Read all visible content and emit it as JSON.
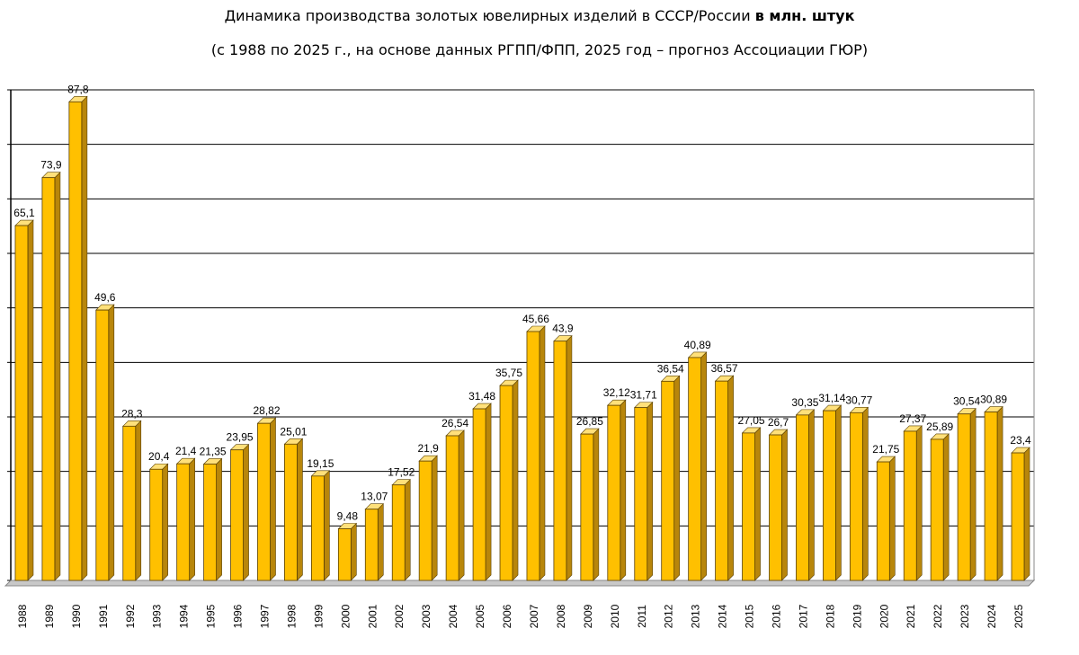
{
  "chart_data": {
    "type": "bar",
    "title": "Динамика производства золотых ювелирных изделий в СССР/России",
    "title_bold": "в млн. штук",
    "subtitle": "(с 1988 по 2025 г., на основе данных РГПП/ФПП, 2025 год – прогноз Ассоциации ГЮР)",
    "xlabel": "",
    "ylabel": "",
    "ylim": [
      0,
      90
    ],
    "grid": true,
    "bar_color": "#FFC000",
    "forecast_label_color": "#FF0000",
    "categories": [
      "1988",
      "1989",
      "1990",
      "1991",
      "1992",
      "1993",
      "1994",
      "1995",
      "1996",
      "1997",
      "1998",
      "1999",
      "2000",
      "2001",
      "2002",
      "2003",
      "2004",
      "2005",
      "2006",
      "2007",
      "2008",
      "2009",
      "2010",
      "2011",
      "2012",
      "2013",
      "2014",
      "2015",
      "2016",
      "2017",
      "2018",
      "2019",
      "2020",
      "2021",
      "2022",
      "2023",
      "2024",
      "2025"
    ],
    "values": [
      65.1,
      73.9,
      87.8,
      49.6,
      28.3,
      20.4,
      21.4,
      21.35,
      23.95,
      28.82,
      25.01,
      19.15,
      9.48,
      13.07,
      17.52,
      21.9,
      26.54,
      31.48,
      35.75,
      45.66,
      43.9,
      26.85,
      32.12,
      31.71,
      36.54,
      40.89,
      36.57,
      27.05,
      26.7,
      30.35,
      31.14,
      30.77,
      21.75,
      27.37,
      25.89,
      30.54,
      30.89,
      23.4
    ],
    "labels": [
      "65,1",
      "73,9",
      "87,8",
      "49,6",
      "28,3",
      "20,4",
      "21,4",
      "21,35",
      "23,95",
      "28,82",
      "25,01",
      "19,15",
      "9,48",
      "13,07",
      "17,52",
      "21,9",
      "26,54",
      "31,48",
      "35,75",
      "45,66",
      "43,9",
      "26,85",
      "32,12",
      "31,71",
      "36,54",
      "40,89",
      "36,57",
      "27,05",
      "26,7",
      "30,35",
      "31,14",
      "30,77",
      "21,75",
      "27,37",
      "25,89",
      "30,54",
      "30,89",
      "23,4"
    ]
  }
}
